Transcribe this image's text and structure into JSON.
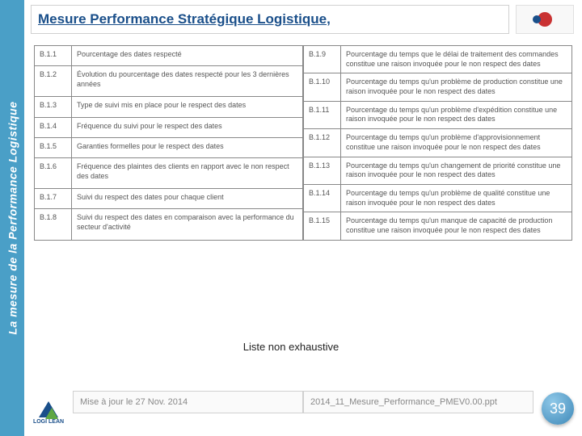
{
  "sidebar": {
    "title": "La mesure de la Performance Logistique"
  },
  "header": {
    "title": "Mesure Performance Stratégique Logistique,"
  },
  "table": {
    "left": [
      {
        "code": "B.1.1",
        "text": "Pourcentage des dates respecté"
      },
      {
        "code": "B.1.2",
        "text": "Évolution du pourcentage des dates respecté pour les 3 dernières années"
      },
      {
        "code": "B.1.3",
        "text": "Type de suivi mis en place pour le respect des dates"
      },
      {
        "code": "B.1.4",
        "text": "Fréquence du suivi pour le respect des dates"
      },
      {
        "code": "B.1.5",
        "text": "Garanties formelles pour le respect des dates"
      },
      {
        "code": "B.1.6",
        "text": "Fréquence des plaintes des clients en rapport avec le non respect des dates"
      },
      {
        "code": "B.1.7",
        "text": "Suivi du respect des dates pour chaque client"
      },
      {
        "code": "B.1.8",
        "text": "Suivi du respect des dates en comparaison avec la performance du secteur d'activité"
      }
    ],
    "right": [
      {
        "code": "B.1.9",
        "text": "Pourcentage du temps que le délai de traitement des commandes constitue une raison invoquée pour le non respect des dates"
      },
      {
        "code": "B.1.10",
        "text": "Pourcentage du temps qu'un problème de production constitue une raison invoquée pour le non respect des dates"
      },
      {
        "code": "B.1.11",
        "text": "Pourcentage du temps qu'un problème d'expédition constitue une raison invoquée pour le non respect des dates"
      },
      {
        "code": "B.1.12",
        "text": "Pourcentage du temps qu'un problème d'approvisionnement constitue une raison invoquée pour le non respect des dates"
      },
      {
        "code": "B.1.13",
        "text": "Pourcentage du temps qu'un changement de priorité constitue une raison invoquée pour le non respect des dates"
      },
      {
        "code": "B.1.14",
        "text": "Pourcentage du temps qu'un problème de qualité constitue une raison invoquée pour le non respect des dates"
      },
      {
        "code": "B.1.15",
        "text": "Pourcentage du temps qu'un manque de capacité de production constitue une raison invoquée pour le non respect des dates"
      }
    ]
  },
  "caption": "Liste non exhaustive",
  "footer": {
    "updated": "Mise à jour le 27 Nov. 2014",
    "filename": "2014_11_Mesure_Performance_PMEV0.00.ppt"
  },
  "logo_bottom": "LOGI LEAN",
  "page": "39",
  "colors": {
    "sidebar_bg": "#4a9fc7",
    "title": "#1a4f8a",
    "accent_red": "#c93232",
    "page_badge": "#3d88b8"
  }
}
